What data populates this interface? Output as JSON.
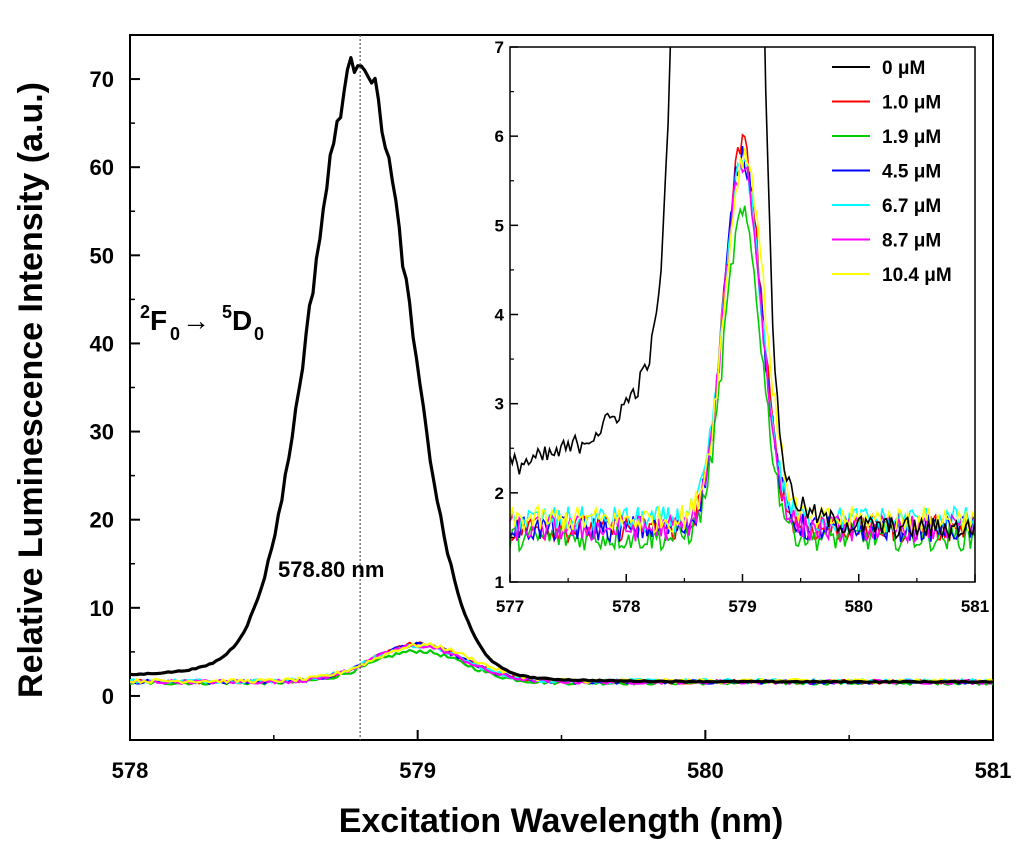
{
  "chart_data": [
    {
      "id": "main",
      "type": "line",
      "xlabel": "Excitation Wavelength (nm)",
      "ylabel": "Relative Luminescence Intensity (a.u.)",
      "xlim": [
        578,
        581
      ],
      "ylim": [
        -5,
        75
      ],
      "xticks": [
        578,
        579,
        580,
        581
      ],
      "xtick_labels": [
        "578",
        "579",
        "580",
        "581"
      ],
      "yticks": [
        0,
        10,
        20,
        30,
        40,
        50,
        60,
        70
      ],
      "ytick_labels": [
        "0",
        "10",
        "20",
        "30",
        "40",
        "50",
        "60",
        "70"
      ],
      "annotation_line_x": 578.8,
      "annotation_label": "578.80 nm",
      "transition": {
        "sup1": "2",
        "term1": "F",
        "sub1": "0",
        "arrow": "→",
        "sup2": "5",
        "term2": "D",
        "sub2": "0"
      },
      "series": [
        {
          "name": "0 μM",
          "color": "#000000",
          "baseline": 1.6,
          "amplitude": 67.0,
          "center": 578.8,
          "width": 0.17,
          "tail": 4.0
        },
        {
          "name": "1.0 μM",
          "color": "#ff0000",
          "baseline": 1.6,
          "amplitude": 4.3,
          "center": 579.0,
          "width": 0.16
        },
        {
          "name": "1.9 μM",
          "color": "#00cc00",
          "baseline": 1.5,
          "amplitude": 3.6,
          "center": 579.0,
          "width": 0.16
        },
        {
          "name": "4.5 μM",
          "color": "#0000ff",
          "baseline": 1.6,
          "amplitude": 4.2,
          "center": 579.0,
          "width": 0.16
        },
        {
          "name": "6.7 μM",
          "color": "#00ffff",
          "baseline": 1.7,
          "amplitude": 4.0,
          "center": 579.0,
          "width": 0.16
        },
        {
          "name": "8.7 μM",
          "color": "#ff00ff",
          "baseline": 1.6,
          "amplitude": 4.1,
          "center": 579.0,
          "width": 0.16
        },
        {
          "name": "10.4 μM",
          "color": "#ffff00",
          "baseline": 1.7,
          "amplitude": 4.1,
          "center": 579.02,
          "width": 0.17
        }
      ]
    },
    {
      "id": "inset",
      "type": "line",
      "xlim": [
        577,
        581
      ],
      "ylim": [
        1,
        7
      ],
      "xticks": [
        577,
        578,
        579,
        580,
        581
      ],
      "xtick_labels": [
        "577",
        "578",
        "579",
        "580",
        "581"
      ],
      "yticks": [
        1,
        2,
        3,
        4,
        5,
        6,
        7
      ],
      "ytick_labels": [
        "1",
        "2",
        "3",
        "4",
        "5",
        "6",
        "7"
      ],
      "legend": [
        "0 μM",
        "1.0 μM",
        "1.9 μM",
        "4.5 μM",
        "6.7 μM",
        "8.7 μM",
        "10.4 μM"
      ],
      "legend_position": "top-right"
    }
  ]
}
